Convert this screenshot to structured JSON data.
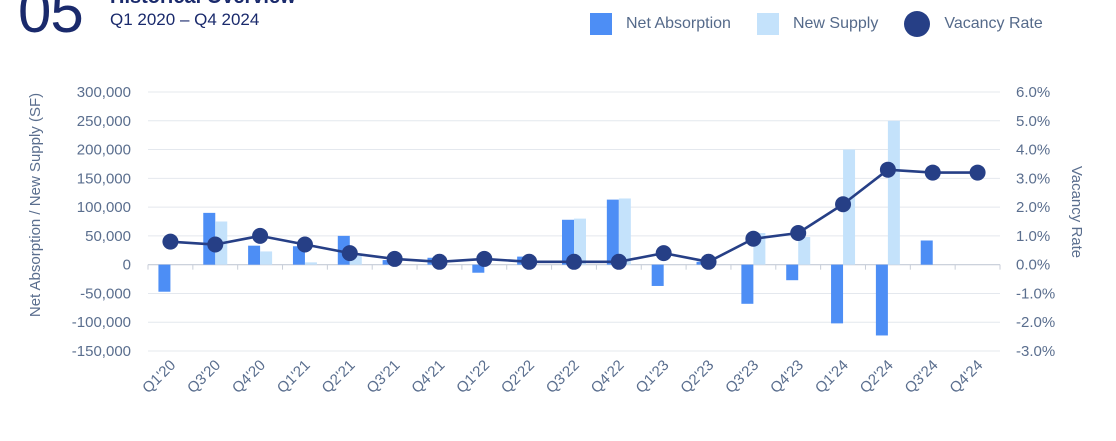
{
  "header": {
    "section_number": "05",
    "title": "Historical Overview",
    "subtitle": "Q1 2020 – Q4 2024"
  },
  "colors": {
    "net_absorption": "#4d8ef5",
    "new_supply": "#c4e2fb",
    "vacancy_rate": "#263f86",
    "axis_text": "#5a6e8e",
    "grid": "#e4e8ee"
  },
  "legend": {
    "net_absorption": "Net Absorption",
    "new_supply": "New Supply",
    "vacancy_rate": "Vacancy Rate"
  },
  "chart_data": {
    "type": "bar",
    "categories": [
      "Q1'20",
      "Q3'20",
      "Q4'20",
      "Q1'21",
      "Q2'21",
      "Q3'21",
      "Q4'21",
      "Q1'22",
      "Q2'22",
      "Q3'22",
      "Q4'22",
      "Q1'23",
      "Q2'23",
      "Q3'23",
      "Q4'23",
      "Q1'24",
      "Q2'24",
      "Q3'24",
      "Q4'24"
    ],
    "series": [
      {
        "name": "Net Absorption",
        "type": "bar",
        "axis": "left",
        "values": [
          -47000,
          90000,
          33000,
          32000,
          50000,
          8000,
          12000,
          -14000,
          14000,
          78000,
          113000,
          -37000,
          5000,
          -68000,
          -27000,
          -102000,
          -123000,
          42000,
          0
        ]
      },
      {
        "name": "New Supply",
        "type": "bar",
        "axis": "left",
        "values": [
          0,
          75000,
          23000,
          4000,
          15000,
          0,
          0,
          0,
          0,
          80000,
          115000,
          0,
          0,
          55000,
          48000,
          200000,
          250000,
          0,
          0
        ]
      },
      {
        "name": "Vacancy Rate",
        "type": "line",
        "axis": "right",
        "values": [
          0.8,
          0.7,
          1.0,
          0.7,
          0.4,
          0.2,
          0.1,
          0.2,
          0.1,
          0.1,
          0.1,
          0.4,
          0.1,
          0.9,
          1.1,
          2.1,
          3.3,
          3.2,
          3.2
        ]
      }
    ],
    "ylabel": "Net Absorption / New Supply (SF)",
    "y2label": "Vacancy Rate",
    "ylim": [
      -150000,
      300000
    ],
    "y2lim": [
      -3.0,
      6.0
    ],
    "yticks": [
      "300,000",
      "250,000",
      "200,000",
      "150,000",
      "100,000",
      "50,000",
      "0",
      "-50,000",
      "-100,000",
      "-150,000"
    ],
    "y2ticks": [
      "6.0%",
      "5.0%",
      "4.0%",
      "3.0%",
      "2.0%",
      "1.0%",
      "0.0%",
      "-1.0%",
      "-2.0%",
      "-3.0%"
    ],
    "grid": true,
    "legend_position": "top-right"
  }
}
